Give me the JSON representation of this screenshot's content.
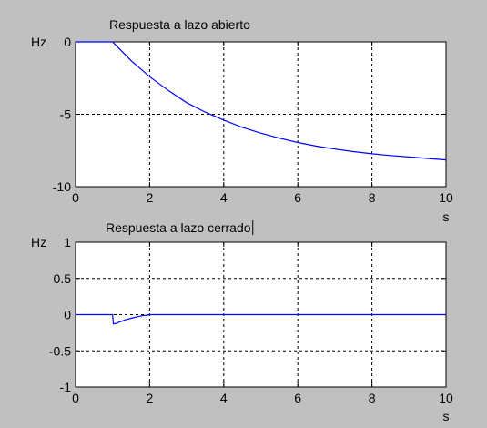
{
  "figure": {
    "background": "#c0c0c0",
    "axes_background": "#ffffff",
    "line_color": "#0000ff",
    "grid_color": "#000000"
  },
  "chart_data": [
    {
      "type": "line",
      "title": "Respuesta a lazo abierto",
      "xlabel": "s",
      "ylabel": "Hz",
      "xlim": [
        0,
        10
      ],
      "ylim": [
        -10,
        0
      ],
      "x_ticks": [
        0,
        2,
        4,
        6,
        8,
        10
      ],
      "y_ticks": [
        0,
        -5,
        -10
      ],
      "x_tick_labels": [
        "0",
        "2",
        "4",
        "6",
        "8",
        "10"
      ],
      "y_tick_labels": [
        "0",
        "-5",
        "-10"
      ],
      "grid": true,
      "series": [
        {
          "x": [
            0,
            1,
            1.5,
            2,
            2.5,
            3,
            3.5,
            4,
            4.5,
            5,
            5.5,
            6,
            6.5,
            7,
            7.5,
            8,
            8.5,
            9,
            9.5,
            10
          ],
          "values": [
            0,
            0,
            -1.3,
            -2.4,
            -3.35,
            -4.2,
            -4.85,
            -5.4,
            -5.9,
            -6.3,
            -6.65,
            -6.95,
            -7.2,
            -7.4,
            -7.58,
            -7.73,
            -7.85,
            -7.95,
            -8.05,
            -8.15
          ]
        }
      ]
    },
    {
      "type": "line",
      "title": "Respuesta a lazo cerrado",
      "xlabel": "s",
      "ylabel": "Hz",
      "xlim": [
        0,
        10
      ],
      "ylim": [
        -1,
        1
      ],
      "x_ticks": [
        0,
        2,
        4,
        6,
        8,
        10
      ],
      "y_ticks": [
        1,
        0.5,
        0,
        -0.5,
        -1
      ],
      "x_tick_labels": [
        "0",
        "2",
        "4",
        "6",
        "8",
        "10"
      ],
      "y_tick_labels": [
        "1",
        "0.5",
        "0",
        "-0.5",
        "-1"
      ],
      "grid": true,
      "series": [
        {
          "x": [
            0,
            1,
            1.02,
            1.1,
            1.2,
            1.35,
            1.5,
            1.65,
            1.8,
            1.95,
            2,
            10
          ],
          "values": [
            0,
            0,
            -0.13,
            -0.12,
            -0.1,
            -0.07,
            -0.05,
            -0.03,
            -0.015,
            -0.005,
            0,
            0
          ]
        }
      ]
    }
  ]
}
